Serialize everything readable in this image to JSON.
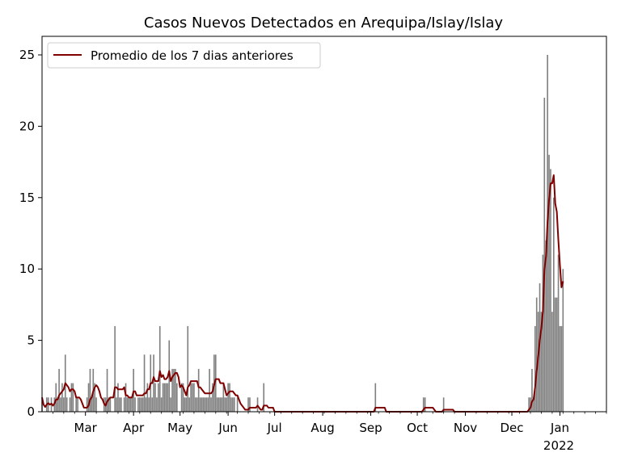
{
  "chart_data": {
    "type": "bar",
    "title": "Casos Nuevos Detectados en Arequipa/Islay/Islay",
    "xlabel": "",
    "ylabel": "",
    "x_range": [
      "2021-02-01",
      "2022-01-31"
    ],
    "ylim": [
      0,
      26.3
    ],
    "y_ticks": [
      0,
      5,
      10,
      15,
      20,
      25
    ],
    "x_ticks": [
      {
        "date": "2021-03-01",
        "label": "Mar"
      },
      {
        "date": "2021-04-01",
        "label": "Apr"
      },
      {
        "date": "2021-05-01",
        "label": "May"
      },
      {
        "date": "2021-06-01",
        "label": "Jun"
      },
      {
        "date": "2021-07-01",
        "label": "Jul"
      },
      {
        "date": "2021-08-01",
        "label": "Aug"
      },
      {
        "date": "2021-09-01",
        "label": "Sep"
      },
      {
        "date": "2021-10-01",
        "label": "Oct"
      },
      {
        "date": "2021-11-01",
        "label": "Nov"
      },
      {
        "date": "2021-12-01",
        "label": "Dec"
      },
      {
        "date": "2022-01-01",
        "label": "Jan"
      }
    ],
    "x_year_label": "2022",
    "legend": {
      "placement": "upper-left",
      "label": "Promedio de los 7 dias anteriores"
    },
    "grid": false,
    "colors": {
      "bars": "#808080",
      "line": "#800000"
    },
    "start_date": "2021-02-01",
    "daily_cases": [
      1,
      0,
      0,
      1,
      1,
      0,
      1,
      0,
      1,
      2,
      1,
      3,
      1,
      2,
      1,
      4,
      1,
      0,
      1,
      2,
      2,
      0,
      1,
      1,
      0,
      0,
      0,
      0,
      0,
      1,
      2,
      3,
      1,
      3,
      2,
      1,
      0,
      0,
      0,
      0,
      1,
      1,
      3,
      1,
      1,
      0,
      0,
      6,
      1,
      2,
      1,
      1,
      0,
      1,
      2,
      1,
      1,
      1,
      1,
      3,
      1,
      0,
      1,
      1,
      1,
      1,
      4,
      1,
      2,
      1,
      4,
      1,
      4,
      2,
      1,
      2,
      6,
      1,
      2,
      2,
      2,
      2,
      5,
      1,
      3,
      3,
      3,
      2,
      0,
      0,
      2,
      2,
      1,
      1,
      6,
      1,
      2,
      2,
      2,
      1,
      1,
      3,
      1,
      1,
      1,
      1,
      1,
      1,
      3,
      1,
      2,
      4,
      4,
      1,
      1,
      1,
      1,
      2,
      1,
      1,
      2,
      2,
      1,
      1,
      1,
      0,
      1,
      0,
      0,
      0,
      0,
      0,
      0,
      1,
      1,
      0,
      0,
      0,
      0,
      1,
      0,
      0,
      0,
      2,
      0,
      0,
      0,
      0,
      0,
      0,
      0,
      0,
      0,
      0,
      0,
      0,
      0,
      0,
      0,
      0,
      0,
      0,
      0,
      0,
      0,
      0,
      0,
      0,
      0,
      0,
      0,
      0,
      0,
      0,
      0,
      0,
      0,
      0,
      0,
      0,
      0,
      0,
      0,
      0,
      0,
      0,
      0,
      0,
      0,
      0,
      0,
      0,
      0,
      0,
      0,
      0,
      0,
      0,
      0,
      0,
      0,
      0,
      0,
      0,
      0,
      0,
      0,
      0,
      0,
      0,
      0,
      0,
      0,
      0,
      0,
      2,
      0,
      0,
      0,
      0,
      0,
      0,
      0,
      0,
      0,
      0,
      0,
      0,
      0,
      0,
      0,
      0,
      0,
      0,
      0,
      0,
      0,
      0,
      0,
      0,
      0,
      0,
      0,
      0,
      0,
      0,
      1,
      1,
      0,
      0,
      0,
      0,
      0,
      0,
      0,
      0,
      0,
      0,
      0,
      1,
      0,
      0,
      0,
      0,
      0,
      0,
      0,
      0,
      0,
      0,
      0,
      0,
      0,
      0,
      0,
      0,
      0,
      0,
      0,
      0,
      0,
      0,
      0,
      0,
      0,
      0,
      0,
      0,
      0,
      0,
      0,
      0,
      0,
      0,
      0,
      0,
      0,
      0,
      0,
      0,
      0,
      0,
      0,
      0,
      0,
      0,
      0,
      0,
      0,
      0,
      0,
      0,
      0,
      0,
      1,
      1,
      3,
      1,
      6,
      8,
      7,
      9,
      7,
      11,
      22,
      12,
      25,
      18,
      17,
      7,
      15,
      8,
      8,
      11,
      6,
      6,
      10
    ]
  }
}
